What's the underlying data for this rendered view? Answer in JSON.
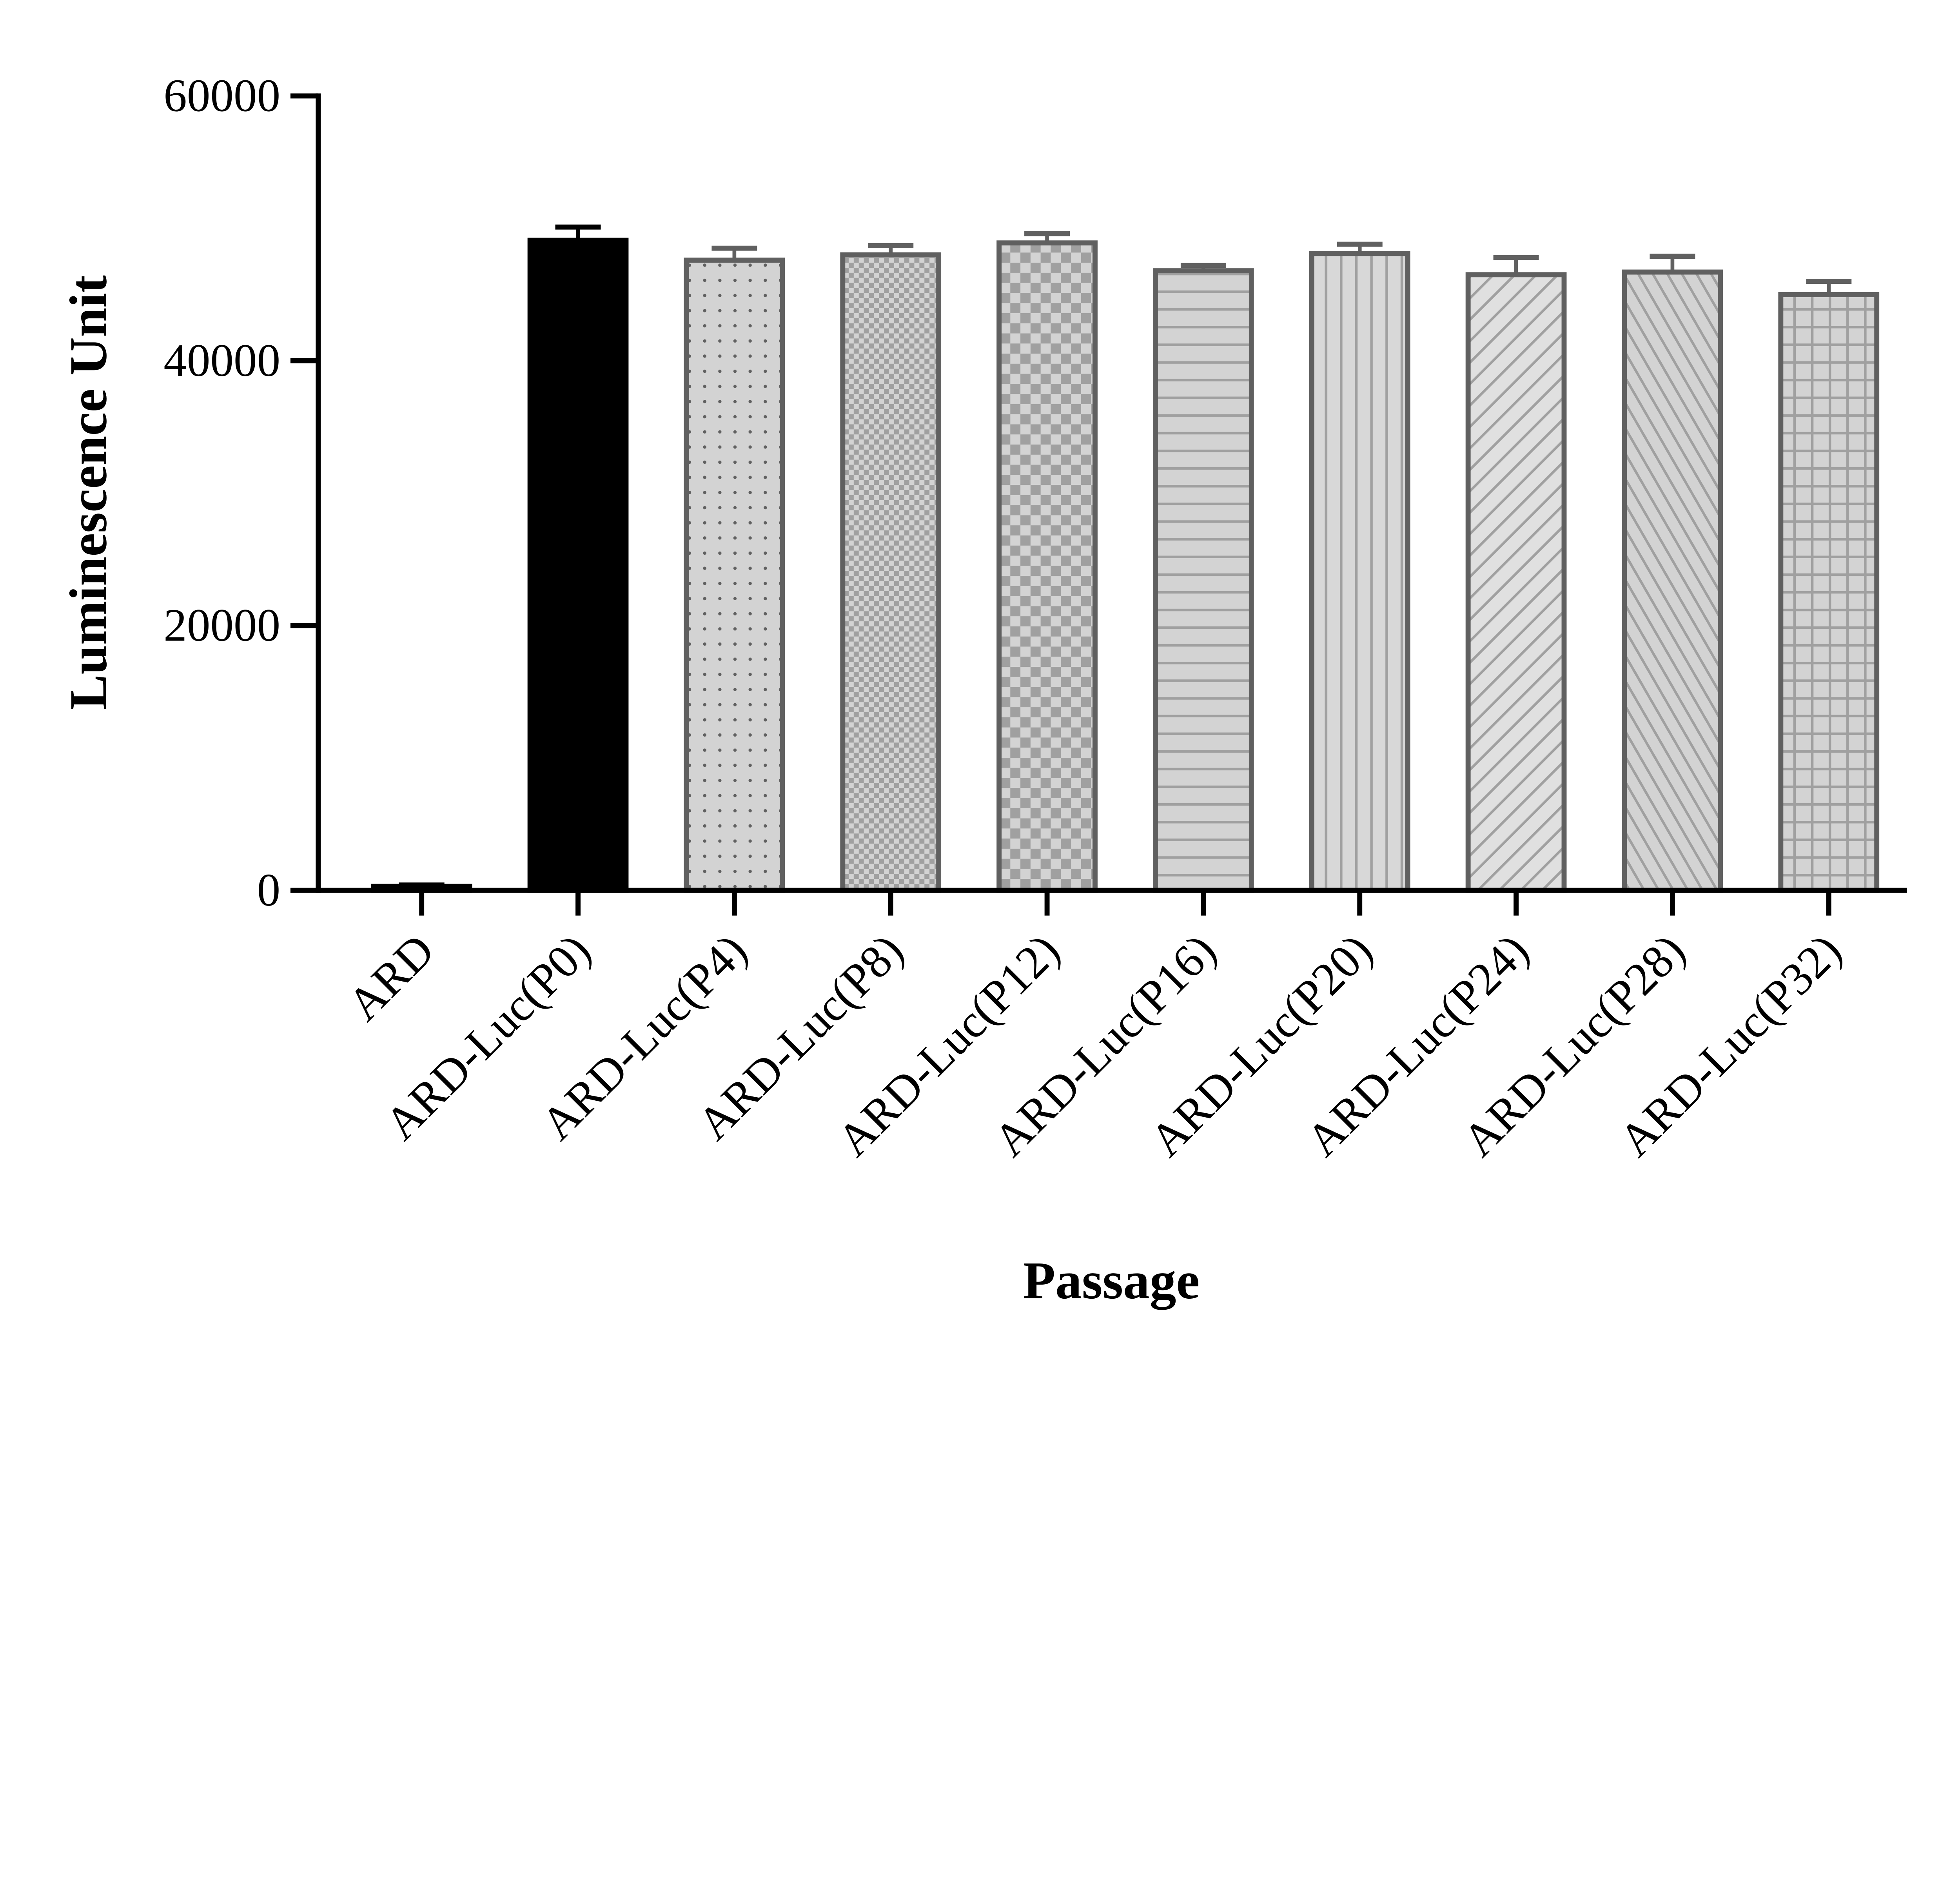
{
  "chart_data": {
    "type": "bar",
    "title": "",
    "xlabel": "Passage",
    "ylabel": "Luminescence Unit",
    "ylim": [
      0,
      60000
    ],
    "yticks": [
      0,
      20000,
      40000,
      60000
    ],
    "grid": false,
    "categories": [
      "ARD",
      "ARD-Luc(P0)",
      "ARD-Luc(P4)",
      "ARD-Luc(P8)",
      "ARD-Luc(P12)",
      "ARD-Luc(P16)",
      "ARD-Luc(P20)",
      "ARD-Luc(P24)",
      "ARD-Luc(P28)",
      "ARD-Luc(P32)"
    ],
    "values": [
      300,
      49100,
      47600,
      48000,
      48900,
      46800,
      48100,
      46500,
      46700,
      45000
    ],
    "errors": [
      100,
      1000,
      900,
      700,
      700,
      400,
      700,
      1300,
      1200,
      1000
    ],
    "fill_patterns": [
      "solid",
      "solid",
      "dots",
      "fine-checker",
      "checker",
      "horizontal-lines",
      "vertical-lines",
      "diagonal-up",
      "diagonal-down",
      "grid"
    ],
    "colors": {
      "ard": "#000000",
      "p0": "#000000",
      "bar_fill": "#d3d3d3",
      "bar_edge": "#606060",
      "pattern": "#a0a0a0"
    }
  }
}
